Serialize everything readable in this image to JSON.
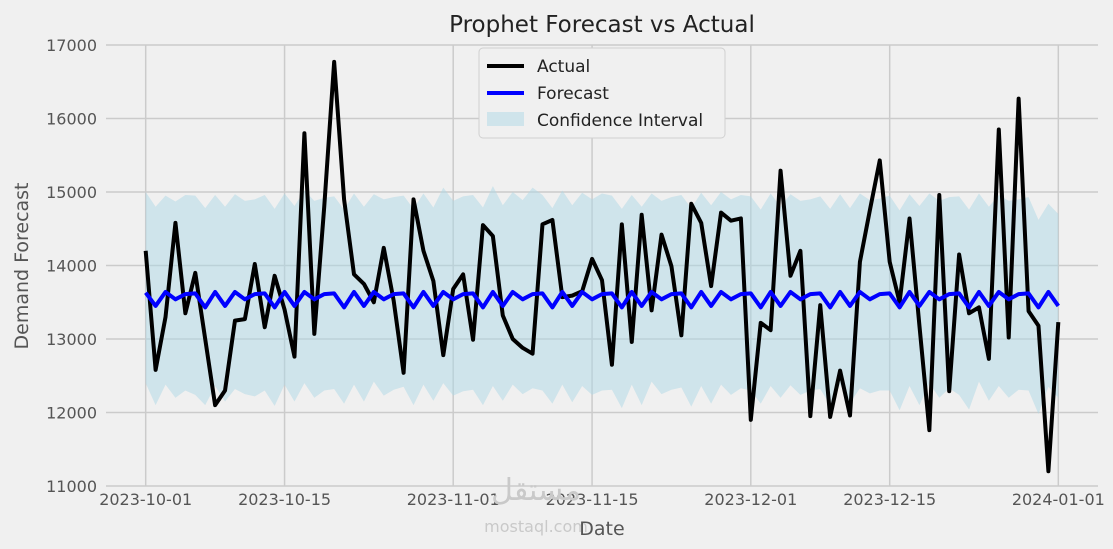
{
  "chart_data": {
    "type": "line",
    "title": "Prophet Forecast vs Actual",
    "xlabel": "Date",
    "ylabel": "Demand Forecast",
    "ylim": [
      11000,
      17000
    ],
    "yticks": [
      11000,
      12000,
      13000,
      14000,
      15000,
      16000,
      17000
    ],
    "x_start_date": "2023-10-01",
    "x_range_days": [
      -4,
      96
    ],
    "xticks": [
      {
        "day": 0,
        "label": "2023-10-01"
      },
      {
        "day": 14,
        "label": "2023-10-15"
      },
      {
        "day": 31,
        "label": "2023-11-01"
      },
      {
        "day": 45,
        "label": "2023-11-15"
      },
      {
        "day": 61,
        "label": "2023-12-01"
      },
      {
        "day": 75,
        "label": "2023-12-15"
      },
      {
        "day": 92,
        "label": "2024-01-01"
      }
    ],
    "grid": true,
    "legend_position": "top-center",
    "colors": {
      "actual": "#000000",
      "forecast": "#0000ff",
      "interval": "#add8e6"
    },
    "series": [
      {
        "name": "Actual",
        "values": [
          14200,
          12580,
          13300,
          14580,
          13350,
          13900,
          13000,
          12100,
          12300,
          13250,
          13270,
          14020,
          13160,
          13860,
          13400,
          12760,
          15800,
          13070,
          14800,
          16770,
          14900,
          13880,
          13750,
          13500,
          14240,
          13520,
          12540,
          14900,
          14200,
          13790,
          12780,
          13680,
          13880,
          12990,
          14550,
          14400,
          13320,
          13000,
          12880,
          12800,
          14560,
          14620,
          13570,
          13590,
          13650,
          14090,
          13800,
          12650,
          14560,
          12960,
          14690,
          13390,
          14420,
          13990,
          13050,
          14840,
          14580,
          13720,
          14720,
          14610,
          14640,
          11900,
          13220,
          13120,
          15290,
          13860,
          14200,
          11950,
          13460,
          11940,
          12570,
          11960,
          14050,
          14750,
          15430,
          14050,
          13500,
          14640,
          13180,
          11760,
          14960,
          12290,
          14150,
          13350,
          13430,
          12730,
          15850,
          13020,
          16270,
          13380,
          13180,
          11200,
          13230
        ]
      },
      {
        "name": "Forecast",
        "values": [
          13630,
          13450,
          13640,
          13540,
          13610,
          13620,
          13430,
          13640,
          13450,
          13640,
          13540,
          13610,
          13620,
          13430,
          13640,
          13450,
          13640,
          13540,
          13610,
          13620,
          13430,
          13640,
          13450,
          13640,
          13540,
          13610,
          13620,
          13430,
          13640,
          13450,
          13640,
          13540,
          13610,
          13620,
          13430,
          13640,
          13450,
          13640,
          13540,
          13610,
          13620,
          13430,
          13640,
          13450,
          13640,
          13540,
          13610,
          13620,
          13430,
          13640,
          13450,
          13640,
          13540,
          13610,
          13620,
          13430,
          13640,
          13450,
          13640,
          13540,
          13610,
          13620,
          13430,
          13640,
          13450,
          13640,
          13540,
          13610,
          13620,
          13430,
          13640,
          13450,
          13640,
          13540,
          13610,
          13620,
          13430,
          13640,
          13450,
          13640,
          13540,
          13610,
          13620,
          13430,
          13640,
          13450,
          13640,
          13540,
          13610,
          13620,
          13430,
          13640,
          13450
        ]
      },
      {
        "name": "Confidence Interval",
        "lower": [
          12400,
          12100,
          12380,
          12200,
          12300,
          12240,
          12100,
          12360,
          12150,
          12320,
          12250,
          12220,
          12300,
          12090,
          12380,
          12150,
          12400,
          12200,
          12300,
          12320,
          12120,
          12380,
          12150,
          12420,
          12230,
          12310,
          12350,
          12100,
          12380,
          12160,
          12400,
          12230,
          12290,
          12310,
          12100,
          12360,
          12160,
          12380,
          12250,
          12330,
          12300,
          12120,
          12380,
          12140,
          12360,
          12240,
          12300,
          12310,
          12060,
          12380,
          12100,
          12420,
          12250,
          12310,
          12340,
          12080,
          12360,
          12120,
          12380,
          12240,
          12330,
          12300,
          12120,
          12360,
          12200,
          12370,
          12240,
          12300,
          12320,
          12100,
          12380,
          12130,
          12330,
          12260,
          12300,
          12300,
          12030,
          12360,
          12100,
          12400,
          12200,
          12330,
          12240,
          12040,
          12420,
          12160,
          12360,
          12200,
          12310,
          12300,
          11980,
          12350,
          12200
        ],
        "upper": [
          15000,
          14800,
          14950,
          14870,
          14960,
          14950,
          14780,
          14960,
          14800,
          14970,
          14880,
          14900,
          14960,
          14770,
          14980,
          14810,
          15020,
          14880,
          14920,
          14940,
          14760,
          14980,
          14800,
          14970,
          14900,
          14930,
          14950,
          14770,
          14980,
          14790,
          15060,
          14880,
          14940,
          14960,
          14790,
          15080,
          14820,
          15000,
          14890,
          15060,
          14960,
          14780,
          15020,
          14820,
          14990,
          14900,
          14980,
          14950,
          14770,
          14960,
          14800,
          14980,
          14880,
          14930,
          14960,
          14780,
          14990,
          14820,
          15000,
          14900,
          14960,
          14940,
          14760,
          14980,
          14800,
          14970,
          14880,
          14900,
          14940,
          14770,
          14970,
          14780,
          14980,
          14890,
          14910,
          14950,
          14750,
          14970,
          14810,
          14980,
          14880,
          14930,
          14940,
          14760,
          14980,
          14800,
          14960,
          14880,
          14900,
          14930,
          14620,
          14840,
          14700
        ]
      }
    ]
  },
  "watermark": {
    "arabic": "مستقل",
    "latin": "mostaql.com"
  }
}
